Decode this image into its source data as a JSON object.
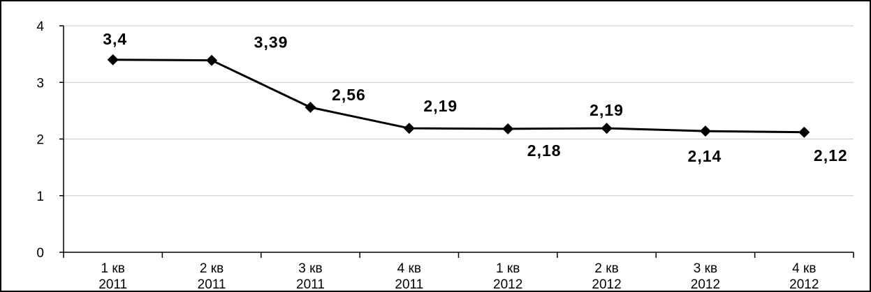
{
  "chart_data": {
    "type": "line",
    "title": "",
    "xlabel": "",
    "ylabel": "",
    "categories": [
      [
        "1 кв",
        "2011"
      ],
      [
        "2 кв",
        "2011"
      ],
      [
        "3 кв",
        "2011"
      ],
      [
        "4 кв",
        "2011"
      ],
      [
        "1 кв",
        "2012"
      ],
      [
        "2 кв",
        "2012"
      ],
      [
        "3 кв",
        "2012"
      ],
      [
        "4 кв",
        "2012"
      ]
    ],
    "series": [
      {
        "values": [
          3.4,
          3.39,
          2.56,
          2.19,
          2.18,
          2.19,
          2.14,
          2.12
        ],
        "color": "#000000",
        "marker": "diamond"
      }
    ],
    "data_labels": [
      "3,4",
      "3,39",
      "2,56",
      "2,19",
      "2,18",
      "2,19",
      "2,14",
      "2,12"
    ],
    "ylim": [
      0,
      4
    ],
    "y_ticks": [
      0,
      1,
      2,
      3,
      4
    ],
    "grid": true,
    "gridline_color": "#c8c8c8",
    "legend": "none"
  }
}
